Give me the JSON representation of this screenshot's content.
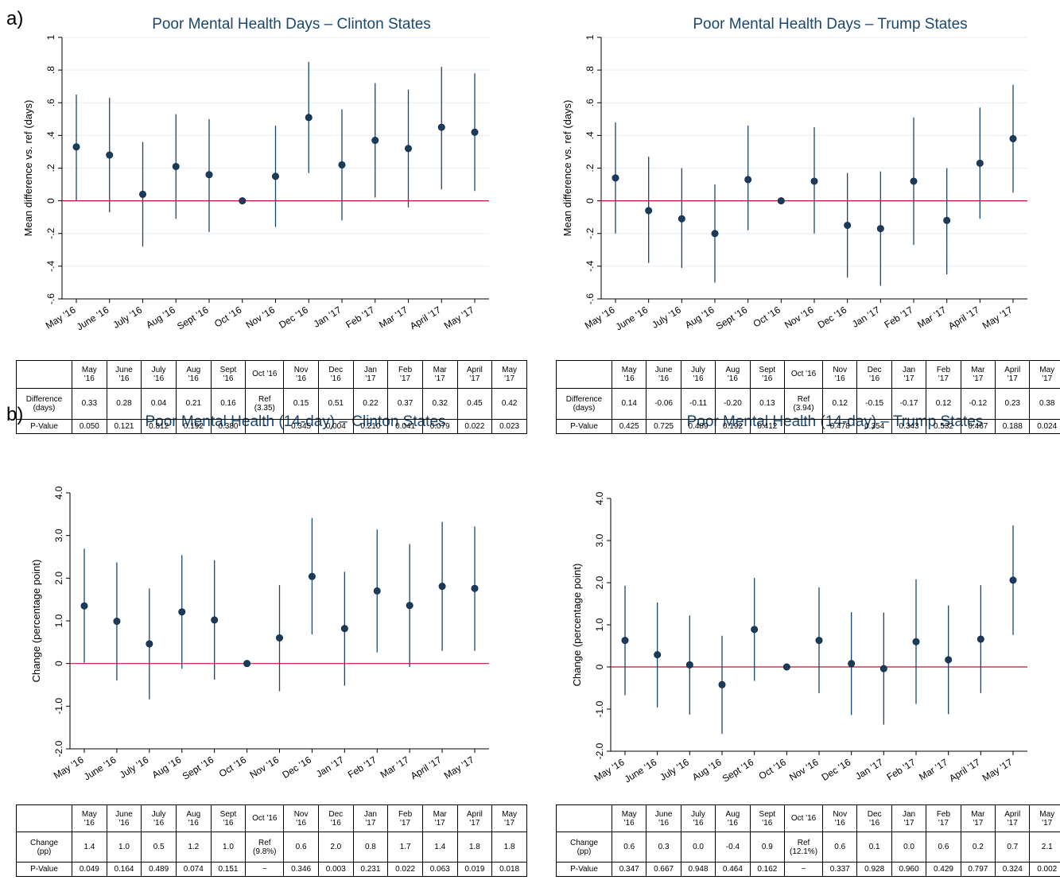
{
  "panel_labels": [
    "a)",
    "b)"
  ],
  "chart_data": [
    {
      "id": "a-clinton",
      "type": "scatter",
      "title": "Poor Mental Health Days – Clinton States",
      "ylabel": "Mean difference vs. ref (days)",
      "categories": [
        "May '16",
        "June '16",
        "July '16",
        "Aug '16",
        "Sept '16",
        "Oct '16",
        "Nov '16",
        "Dec '16",
        "Jan '17",
        "Feb '17",
        "Mar '17",
        "April '17",
        "May '17"
      ],
      "values": [
        0.33,
        0.28,
        0.04,
        0.21,
        0.16,
        0,
        0.15,
        0.51,
        0.22,
        0.37,
        0.32,
        0.45,
        0.42
      ],
      "ci_low": [
        0.0,
        -0.07,
        -0.28,
        -0.11,
        -0.19,
        0,
        -0.16,
        0.17,
        -0.12,
        0.02,
        -0.04,
        0.07,
        0.06
      ],
      "ci_high": [
        0.65,
        0.63,
        0.36,
        0.53,
        0.5,
        0,
        0.46,
        0.85,
        0.56,
        0.72,
        0.68,
        0.82,
        0.78
      ],
      "ylim": [
        -0.6,
        1.0
      ],
      "yticks": [
        -0.6,
        -0.4,
        -0.2,
        0,
        0.2,
        0.4,
        0.6,
        0.8,
        1.0
      ],
      "yticklabels": [
        "-.6",
        "-.4",
        "-.2",
        "0",
        ".2",
        ".4",
        ".6",
        ".8",
        "1"
      ],
      "grid": true,
      "reference_line": 0,
      "colors": {
        "points": "#1a3b5c",
        "bars": "#1a476f",
        "refline": "#c0143c",
        "grid": "#e8eef4"
      }
    },
    {
      "id": "a-trump",
      "type": "scatter",
      "title": "Poor Mental Health Days – Trump States",
      "ylabel": "Mean difference vs. ref (days)",
      "categories": [
        "May '16",
        "June '16",
        "July '16",
        "Aug '16",
        "Sept '16",
        "Oct '16",
        "Nov '16",
        "Dec '16",
        "Jan '17",
        "Feb '17",
        "Mar '17",
        "April '17",
        "May '17"
      ],
      "values": [
        0.14,
        -0.06,
        -0.11,
        -0.2,
        0.13,
        0,
        0.12,
        -0.15,
        -0.17,
        0.12,
        -0.12,
        0.23,
        0.38
      ],
      "ci_low": [
        -0.2,
        -0.38,
        -0.41,
        -0.5,
        -0.18,
        0,
        -0.2,
        -0.47,
        -0.52,
        -0.27,
        -0.45,
        -0.11,
        0.05
      ],
      "ci_high": [
        0.48,
        0.27,
        0.2,
        0.1,
        0.46,
        0,
        0.45,
        0.17,
        0.18,
        0.51,
        0.2,
        0.57,
        0.71
      ],
      "ylim": [
        -0.6,
        1.0
      ],
      "yticks": [
        -0.6,
        -0.4,
        -0.2,
        0,
        0.2,
        0.4,
        0.6,
        0.8,
        1.0
      ],
      "yticklabels": [
        "-.6",
        "-.4",
        "-.2",
        "0",
        ".2",
        ".4",
        ".6",
        ".8",
        "1"
      ],
      "grid": true,
      "reference_line": 0,
      "colors": {
        "points": "#1a3b5c",
        "bars": "#1a476f",
        "refline": "#c0143c",
        "grid": "#e8eef4"
      }
    },
    {
      "id": "b-clinton",
      "type": "scatter",
      "title": "Poor Mental Health (14-day) – Clinton States",
      "ylabel": "Change (percentage point)",
      "categories": [
        "May '16",
        "June '16",
        "July '16",
        "Aug '16",
        "Sept '16",
        "Oct '16",
        "Nov '16",
        "Dec '16",
        "Jan '17",
        "Feb '17",
        "Mar '17",
        "April '17",
        "May '17"
      ],
      "values": [
        1.35,
        0.99,
        0.46,
        1.21,
        1.02,
        0,
        0.6,
        2.04,
        0.82,
        1.7,
        1.36,
        1.81,
        1.76
      ],
      "ci_low": [
        0.02,
        -0.4,
        -0.84,
        -0.12,
        -0.38,
        0,
        -0.65,
        0.68,
        -0.52,
        0.26,
        -0.08,
        0.3,
        0.3
      ],
      "ci_high": [
        2.69,
        2.37,
        1.76,
        2.54,
        2.42,
        0,
        1.84,
        3.41,
        2.15,
        3.14,
        2.8,
        3.32,
        3.21
      ],
      "ylim": [
        -2.0,
        4.0
      ],
      "yticks": [
        -2,
        -1,
        0,
        1,
        2,
        3,
        4
      ],
      "yticklabels": [
        "-2.0",
        "-1.0",
        "0",
        "1.0",
        "2.0",
        "3.0",
        "4.0"
      ],
      "grid": false,
      "reference_line": 0,
      "colors": {
        "points": "#1a3b5c",
        "bars": "#1a476f",
        "refline": "#c0143c",
        "grid": "#e8eef4"
      }
    },
    {
      "id": "b-trump",
      "type": "scatter",
      "title": "Poor Mental Health (14-day) – Trump States",
      "ylabel": "Change (percentage point)",
      "categories": [
        "May '16",
        "June '16",
        "July '16",
        "Aug '16",
        "Sept '16",
        "Oct '16",
        "Nov '16",
        "Dec '16",
        "Jan '17",
        "Feb '17",
        "Mar '17",
        "April '17",
        "May '17"
      ],
      "values": [
        0.63,
        0.29,
        0.05,
        -0.42,
        0.89,
        0,
        0.63,
        0.08,
        -0.04,
        0.6,
        0.17,
        0.66,
        2.06
      ],
      "ci_low": [
        -0.67,
        -0.96,
        -1.13,
        -1.59,
        -0.33,
        0,
        -0.62,
        -1.14,
        -1.37,
        -0.88,
        -1.12,
        -0.62,
        0.76
      ],
      "ci_high": [
        1.93,
        1.53,
        1.22,
        0.74,
        2.11,
        0,
        1.89,
        1.3,
        1.29,
        2.08,
        1.46,
        1.94,
        3.36
      ],
      "ylim": [
        -2.0,
        4.0
      ],
      "yticks": [
        -2,
        -1,
        0,
        1,
        2,
        3,
        4
      ],
      "yticklabels": [
        "-2.0",
        "-1.0",
        "0",
        "1.0",
        "2.0",
        "3.0",
        "4.0"
      ],
      "grid": false,
      "reference_line": 0,
      "colors": {
        "points": "#1a3b5c",
        "bars": "#1a476f",
        "refline": "#c0143c",
        "grid": "#e8eef4"
      }
    }
  ],
  "tables": [
    {
      "header": [
        "",
        "May\n'16",
        "June\n'16",
        "July\n'16",
        "Aug\n'16",
        "Sept\n'16",
        "Oct '16",
        "Nov\n'16",
        "Dec\n'16",
        "Jan\n'17",
        "Feb\n'17",
        "Mar\n'17",
        "April\n'17",
        "May\n'17"
      ],
      "rows": [
        [
          "Difference\n(days)",
          "0.33",
          "0.28",
          "0.04",
          "0.21",
          "0.16",
          "Ref\n(3.35)",
          "0.15",
          "0.51",
          "0.22",
          "0.37",
          "0.32",
          "0.45",
          "0.42"
        ],
        [
          "P-Value",
          "0.050",
          "0.121",
          "0.812",
          "0.192",
          "0.380",
          "~",
          "0.345",
          "0.004",
          "0.210",
          "0.041",
          "0.079",
          "0.022",
          "0.023"
        ]
      ]
    },
    {
      "header": [
        "",
        "May\n'16",
        "June\n'16",
        "July\n'16",
        "Aug\n'16",
        "Sept\n'16",
        "Oct '16",
        "Nov\n'16",
        "Dec\n'16",
        "Jan\n'17",
        "Feb\n'17",
        "Mar\n'17",
        "April\n'17",
        "May\n'17"
      ],
      "rows": [
        [
          "Difference\n(days)",
          "0.14",
          "-0.06",
          "-0.11",
          "-0.20",
          "0.13",
          "Ref\n(3.94)",
          "0.12",
          "-0.15",
          "-0.17",
          "0.12",
          "-0.12",
          "0.23",
          "0.38"
        ],
        [
          "P-Value",
          "0.425",
          "0.725",
          "0.489",
          "0.192",
          "0.412",
          "~",
          "0.478",
          "0.354",
          "0.343",
          "0.532",
          "0.467",
          "0.188",
          "0.024"
        ]
      ]
    },
    {
      "header": [
        "",
        "May\n'16",
        "June\n'16",
        "July\n'16",
        "Aug\n'16",
        "Sept\n'16",
        "Oct '16",
        "Nov\n'16",
        "Dec\n'16",
        "Jan\n'17",
        "Feb\n'17",
        "Mar\n'17",
        "April\n'17",
        "May\n'17"
      ],
      "rows": [
        [
          "Change\n(pp)",
          "1.4",
          "1.0",
          "0.5",
          "1.2",
          "1.0",
          "Ref\n(9.8%)",
          "0.6",
          "2.0",
          "0.8",
          "1.7",
          "1.4",
          "1.8",
          "1.8"
        ],
        [
          "P-Value",
          "0.049",
          "0.164",
          "0.489",
          "0.074",
          "0.151",
          "~",
          "0.346",
          "0.003",
          "0.231",
          "0.022",
          "0.063",
          "0.019",
          "0.018"
        ]
      ]
    },
    {
      "header": [
        "",
        "May\n'16",
        "June\n'16",
        "July\n'16",
        "Aug\n'16",
        "Sept\n'16",
        "Oct '16",
        "Nov\n'16",
        "Dec\n'16",
        "Jan\n'17",
        "Feb\n'17",
        "Mar\n'17",
        "April\n'17",
        "May\n'17"
      ],
      "rows": [
        [
          "Change\n(pp)",
          "0.6",
          "0.3",
          "0.0",
          "-0.4",
          "0.9",
          "Ref\n(12.1%)",
          "0.6",
          "0.1",
          "0.0",
          "0.6",
          "0.2",
          "0.7",
          "2.1"
        ],
        [
          "P-Value",
          "0.347",
          "0.667",
          "0.948",
          "0.464",
          "0.162",
          "~",
          "0.337",
          "0.928",
          "0.960",
          "0.429",
          "0.797",
          "0.324",
          "0.002"
        ]
      ]
    }
  ]
}
